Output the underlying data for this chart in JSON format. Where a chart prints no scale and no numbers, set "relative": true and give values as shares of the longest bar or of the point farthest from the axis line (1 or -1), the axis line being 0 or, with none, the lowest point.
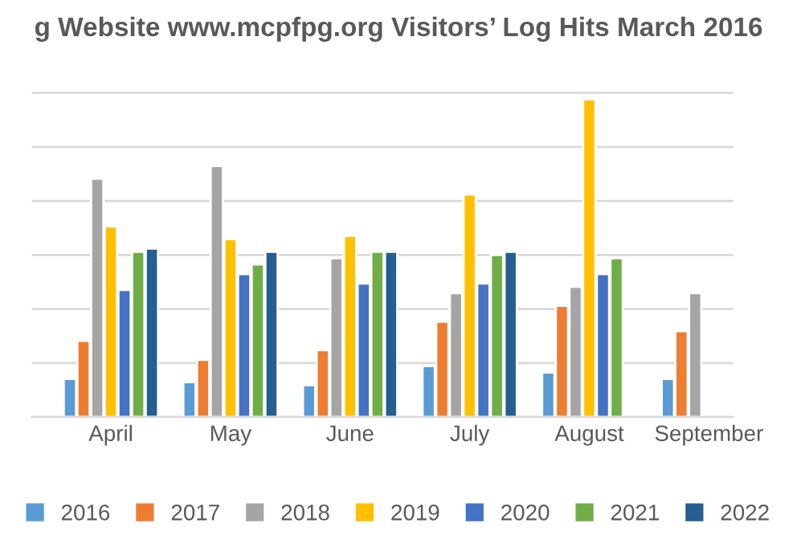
{
  "chart_data": {
    "type": "bar",
    "title": "g Website www.mcpfpg.org Visitors’ Log Hits March 2016",
    "relative": true,
    "grid": "y",
    "legend": "bottom",
    "tick_labels": "x",
    "categories": [
      "April",
      "May",
      "June",
      "July",
      "August",
      "September"
    ],
    "series": [
      {
        "name": "2016",
        "color": "#5b9bd5",
        "values": [
          0.12,
          0.11,
          0.1,
          0.16,
          0.14,
          0.12
        ]
      },
      {
        "name": "2017",
        "color": "#ed7d31",
        "values": [
          0.24,
          0.18,
          0.21,
          0.3,
          0.35,
          0.27
        ]
      },
      {
        "name": "2018",
        "color": "#a5a5a5",
        "values": [
          0.75,
          0.79,
          0.5,
          0.39,
          0.41,
          0.39
        ]
      },
      {
        "name": "2019",
        "color": "#ffc000",
        "values": [
          0.6,
          0.56,
          0.57,
          0.7,
          1,
          null
        ]
      },
      {
        "name": "2020",
        "color": "#4472c4",
        "values": [
          0.4,
          0.45,
          0.42,
          0.42,
          0.45,
          null
        ]
      },
      {
        "name": "2021",
        "color": "#70ad47",
        "values": [
          0.52,
          0.48,
          0.52,
          0.51,
          0.5,
          null
        ]
      },
      {
        "name": "2022",
        "color": "#255e91",
        "values": [
          0.53,
          0.52,
          0.52,
          0.52,
          null,
          null
        ]
      }
    ]
  }
}
